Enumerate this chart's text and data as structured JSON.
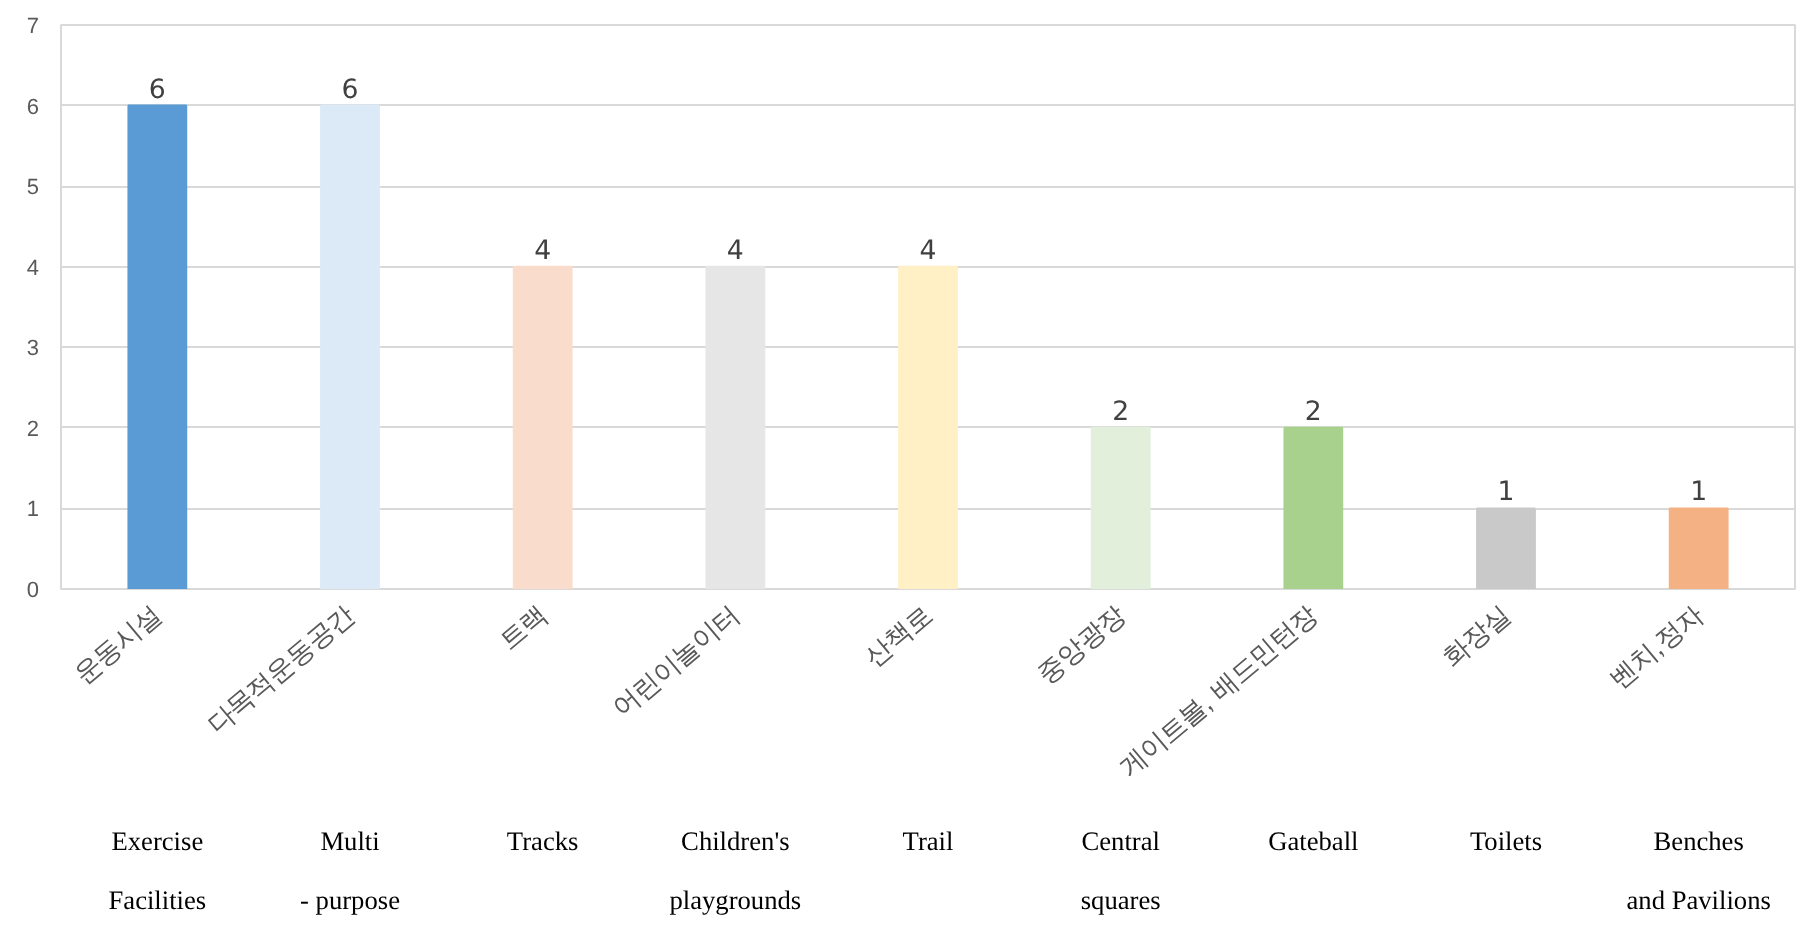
{
  "chart_data": {
    "type": "bar",
    "categories": [
      "운동시설",
      "다목적운동공간",
      "트랙",
      "어린이놀이터",
      "산책로",
      "중앙광장",
      "게이트볼, 배드민턴장",
      "화장실",
      "벤치,정자"
    ],
    "values": [
      6,
      6,
      4,
      4,
      4,
      2,
      2,
      1,
      1
    ],
    "colors": [
      "#5b9bd5",
      "#dce9f7",
      "#f9dccb",
      "#e7e6e6",
      "#fff0c6",
      "#e2efda",
      "#a9d18e",
      "#c9c9c9",
      "#f4b183"
    ],
    "ylim": [
      0,
      7
    ],
    "yticks": [
      0,
      1,
      2,
      3,
      4,
      5,
      6,
      7
    ],
    "grid": "y",
    "data_labels": true,
    "annotations": [
      "Exercise Facilities",
      "Multi - purpose",
      "Tracks",
      "Children's playgrounds",
      "Trail",
      "Central squares",
      "Gateball",
      "Toilets",
      "Benches and Pavilions"
    ]
  }
}
